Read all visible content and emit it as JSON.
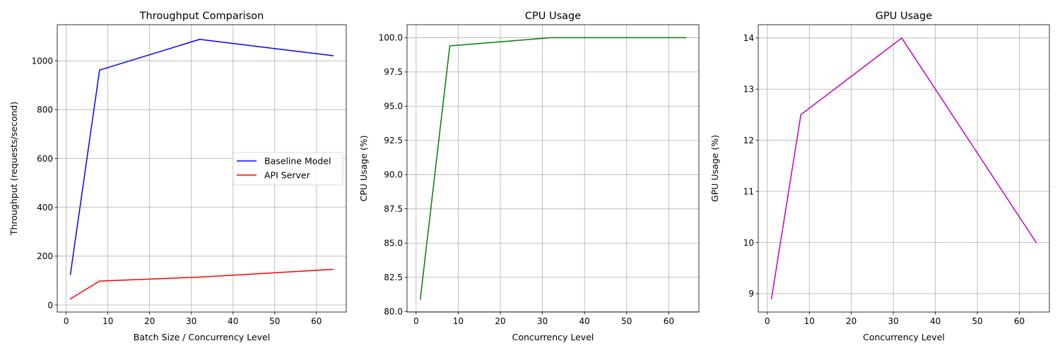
{
  "chart_data": [
    {
      "type": "line",
      "title": "Throughput Comparison",
      "xlabel": "Batch Size / Concurrency Level",
      "ylabel": "Throughput (requests/second)",
      "x": [
        1,
        8,
        32,
        64
      ],
      "xlim": [
        -2.15,
        67.15
      ],
      "ylim": [
        -29,
        1148
      ],
      "xticks": [
        0,
        10,
        20,
        30,
        40,
        50,
        60
      ],
      "yticks": [
        0,
        200,
        400,
        600,
        800,
        1000
      ],
      "ytick_decimals": 0,
      "grid": true,
      "legend": "center-right",
      "series": [
        {
          "name": "Baseline Model",
          "color": "#0000ff",
          "values": [
            125,
            962,
            1088,
            1021
          ]
        },
        {
          "name": "API Server",
          "color": "#ff0000",
          "values": [
            25,
            98,
            114,
            146
          ]
        }
      ]
    },
    {
      "type": "line",
      "title": "CPU Usage",
      "xlabel": "Concurrency Level",
      "ylabel": "CPU Usage (%)",
      "x": [
        1,
        8,
        32,
        64
      ],
      "xlim": [
        -2.15,
        67.15
      ],
      "ylim": [
        79.96,
        100.95
      ],
      "xticks": [
        0,
        10,
        20,
        30,
        40,
        50,
        60
      ],
      "yticks": [
        80.0,
        82.5,
        85.0,
        87.5,
        90.0,
        92.5,
        95.0,
        97.5,
        100.0
      ],
      "ytick_decimals": 1,
      "grid": true,
      "series": [
        {
          "name": "",
          "color": "#008000",
          "values": [
            80.9,
            99.4,
            100.0,
            100.0
          ]
        }
      ]
    },
    {
      "type": "line",
      "title": "GPU Usage",
      "xlabel": "Concurrency Level",
      "ylabel": "GPU Usage (%)",
      "x": [
        1,
        8,
        32,
        64
      ],
      "xlim": [
        -2.15,
        67.15
      ],
      "ylim": [
        8.64,
        14.26
      ],
      "xticks": [
        0,
        10,
        20,
        30,
        40,
        50,
        60
      ],
      "yticks": [
        9,
        10,
        11,
        12,
        13,
        14
      ],
      "ytick_decimals": 0,
      "grid": true,
      "series": [
        {
          "name": "",
          "color": "#bf00bf",
          "values": [
            8.9,
            12.5,
            14.0,
            10.0
          ]
        }
      ]
    }
  ]
}
